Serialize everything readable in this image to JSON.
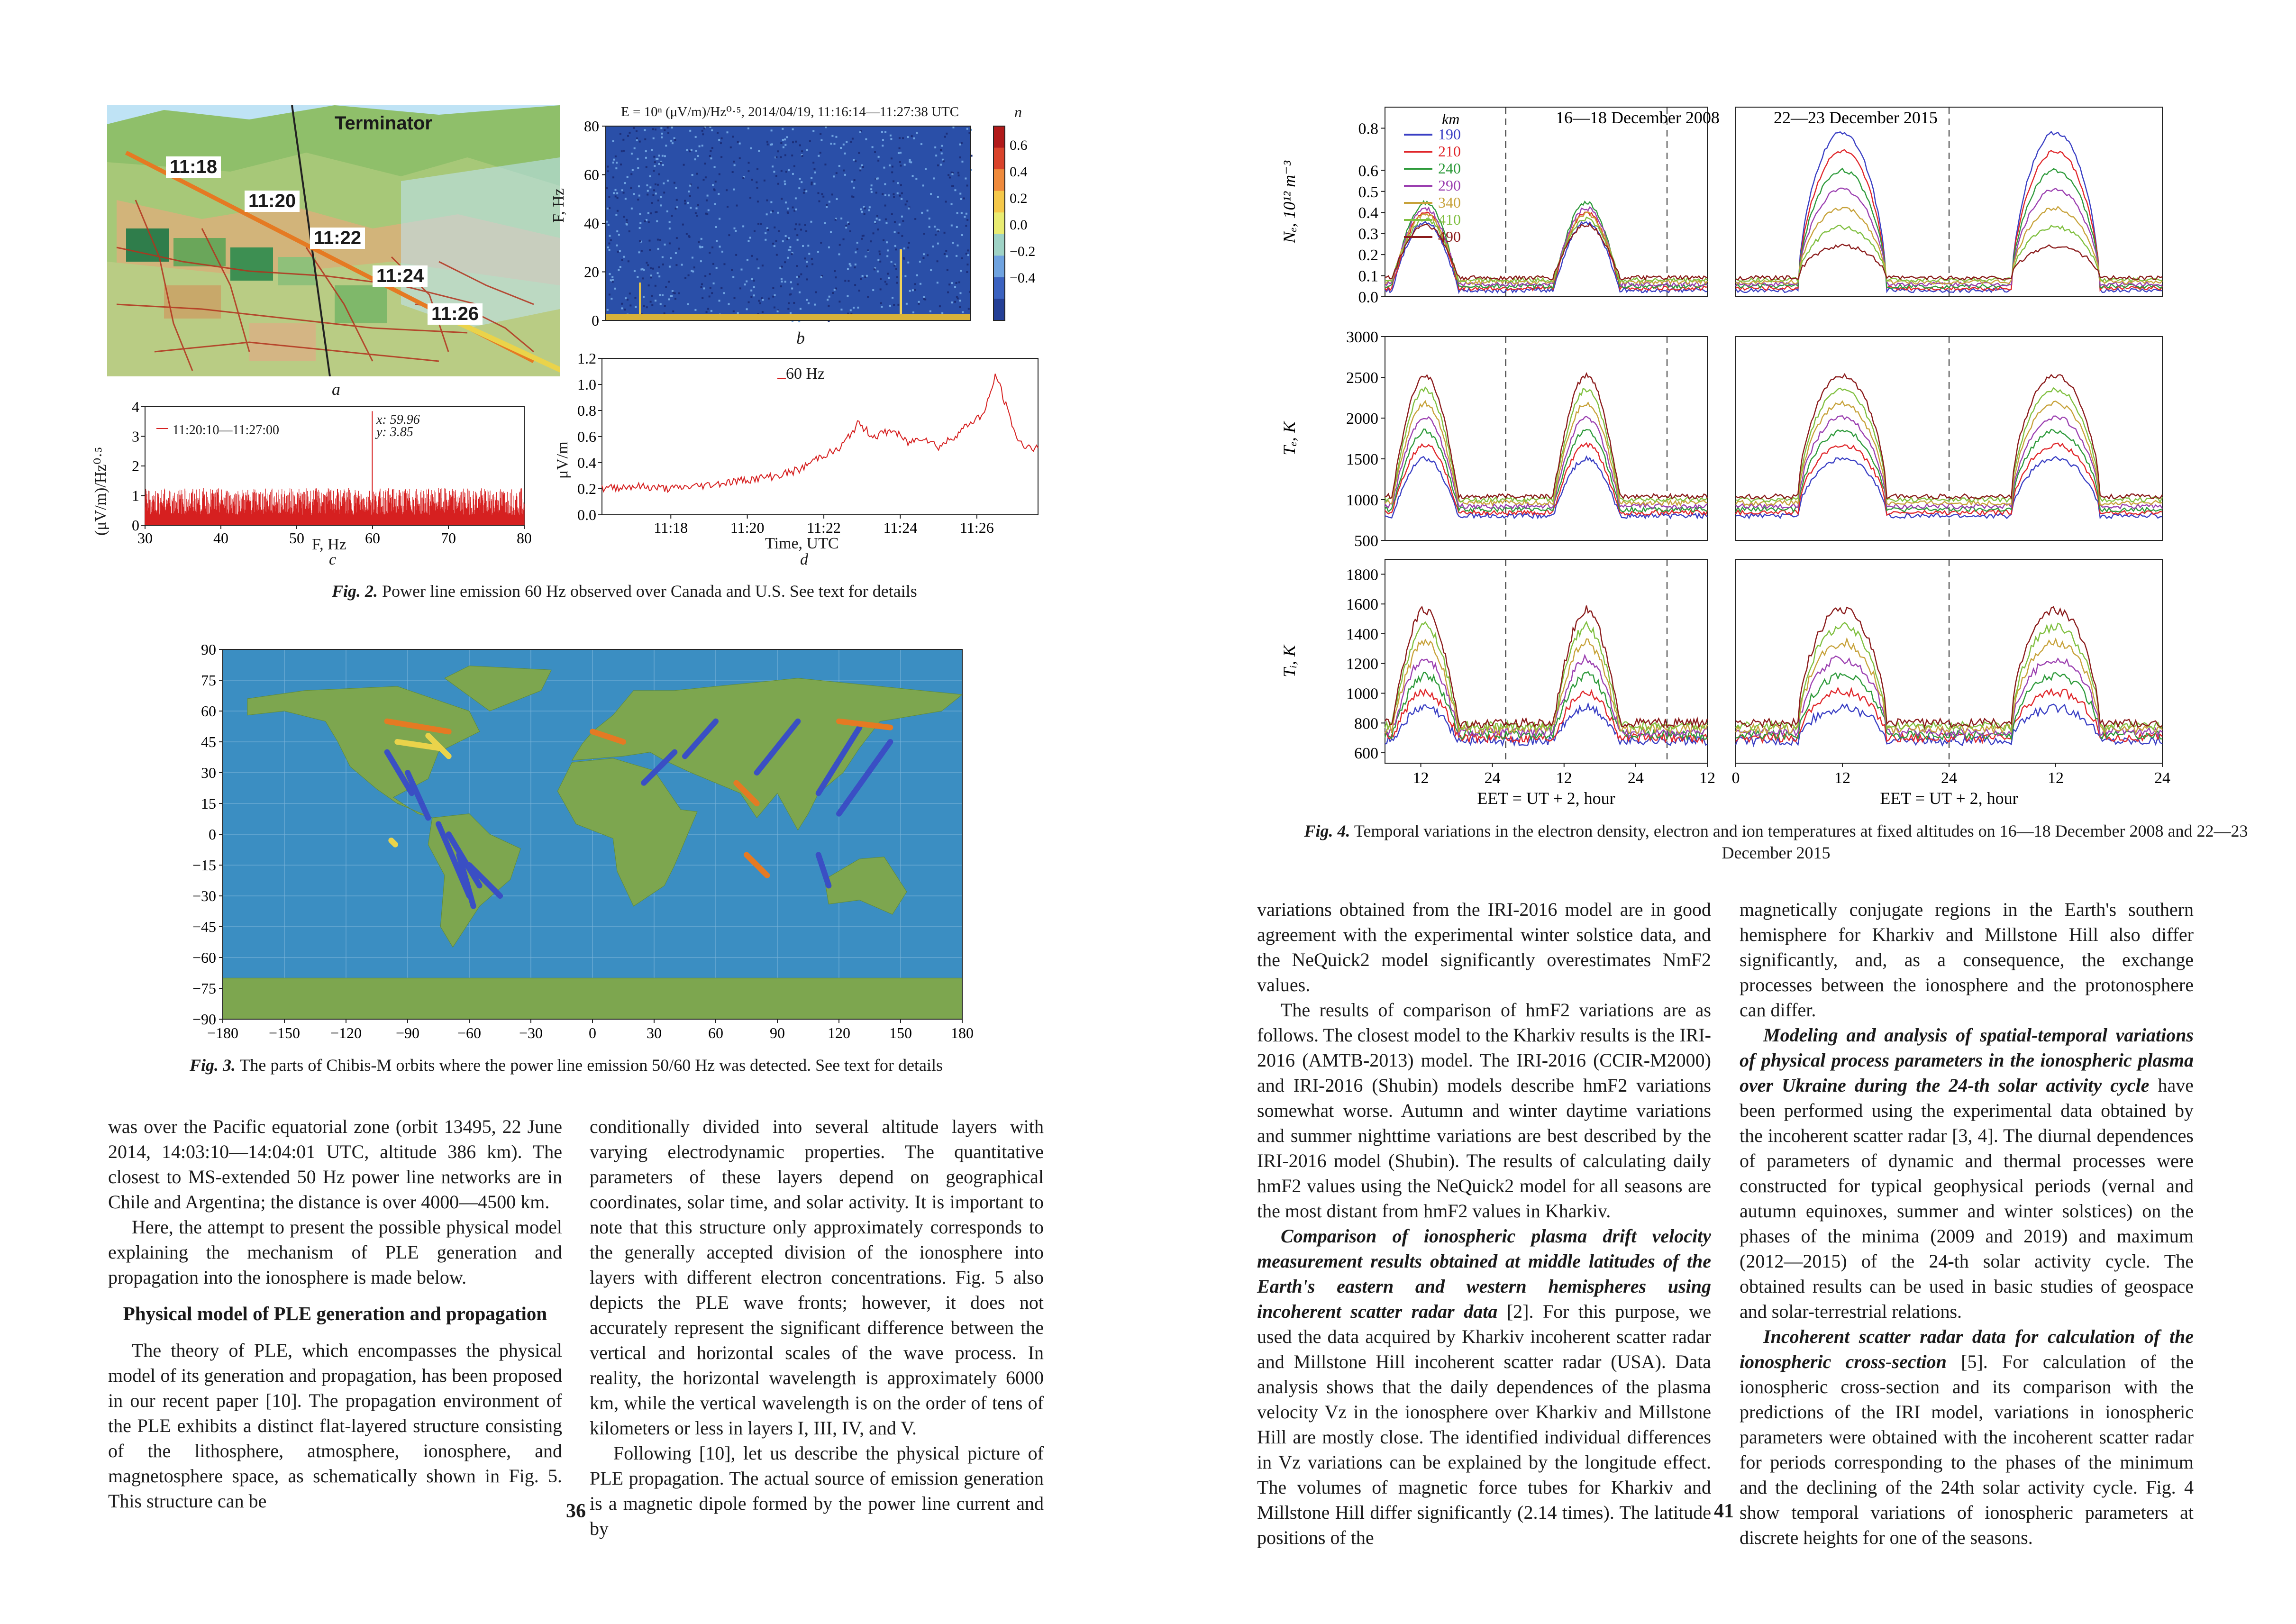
{
  "left_page": {
    "page_number": "36",
    "fig2": {
      "caption_label": "Fig. 2.",
      "caption_text": " Power line emission 60 Hz observed over Canada and U.S. See text for details",
      "panel_a": {
        "letter": "a",
        "terminator_label": "Terminator",
        "times": [
          "11:18",
          "11:20",
          "11:22",
          "11:24",
          "11:26"
        ]
      },
      "panel_b": {
        "letter": "b",
        "title": "E = 10ⁿ (μV/m)/Hz⁰·⁵, 2014/04/19, 11:16:14—11:27:38 UTC",
        "colorbar_label": "n",
        "colorbar_ticks": [
          "0.6",
          "0.4",
          "0.2",
          "0.0",
          "−0.2",
          "−0.4"
        ],
        "ylabel": "F, Hz",
        "yticks": [
          "80",
          "60",
          "40",
          "20",
          "0"
        ]
      },
      "panel_c": {
        "letter": "c",
        "xlabel": "F, Hz",
        "ylabel": "(μV/m)/Hz⁰·⁵",
        "legend": "11:20:10—11:27:00",
        "annotation_x": "x: 59.96",
        "annotation_y": "y: 3.85",
        "xticks": [
          "30",
          "40",
          "50",
          "60",
          "70",
          "80"
        ],
        "yticks": [
          "4",
          "3",
          "2",
          "1",
          "0"
        ],
        "color": "#d62020"
      },
      "panel_d": {
        "letter": "d",
        "xlabel": "Time, UTC",
        "ylabel": "μV/m",
        "legend": "60 Hz",
        "xticks": [
          "11:18",
          "11:20",
          "11:22",
          "11:24",
          "11:26"
        ],
        "yticks": [
          "1.2",
          "1.0",
          "0.8",
          "0.6",
          "0.4",
          "0.2",
          "0.0"
        ],
        "color": "#d62020"
      }
    },
    "fig3": {
      "caption_label": "Fig. 3.",
      "caption_text": " The parts of Chibis-M orbits where the power line emission 50/60 Hz was detected. See text for details",
      "yticks": [
        "90",
        "75",
        "60",
        "45",
        "30",
        "15",
        "0",
        "−15",
        "−30",
        "−45",
        "−60",
        "−75",
        "−90"
      ],
      "xticks": [
        "−180",
        "−150",
        "−120",
        "−90",
        "−60",
        "−30",
        "0",
        "30",
        "60",
        "90",
        "120",
        "150",
        "180"
      ]
    },
    "col1": {
      "p1": "was over the Pacific equatorial zone (orbit 13495, 22 June 2014, 14:03:10—14:04:01 UTC, altitude 386 km). The closest to MS-extended 50 Hz power line networks are in Chile and Argentina; the distance is over 4000—4500 km.",
      "p2": "Here, the attempt to present the possible physical model explaining the mechanism of PLE generation and propagation into the ionosphere is made below.",
      "heading": "Physical model of PLE generation and propagation",
      "p3": "The theory of PLE, which encompasses the physical model of its generation and propagation, has been proposed in our recent paper [10]. The propagation environment of the PLE exhibits a distinct flat-layered structure consisting of the lithosphere, atmosphere, ionosphere, and magnetosphere space, as schematically shown in Fig. 5. This structure can be"
    },
    "col2": {
      "p1": "conditionally divided into several altitude layers with varying electrodynamic properties. The quantitative parameters of these layers depend on geographical coordinates, solar time, and solar activity. It is important to note that this structure only approximately corresponds to the generally accepted division of the ionosphere into layers with different electron concentrations. Fig. 5 also depicts the PLE wave fronts; however, it does not accurately represent the significant difference between the vertical and horizontal scales of the wave process. In reality, the horizontal wavelength is approximately 6000 km, while the vertical wavelength is on the order of tens of kilometers or less in layers I, III, IV, and V.",
      "p2": "Following [10], let us describe the physical picture of PLE propagation. The actual source of emission generation is a magnetic dipole formed by the power line current and by"
    }
  },
  "right_page": {
    "page_number": "41",
    "fig4": {
      "caption_label": "Fig. 4.",
      "caption_text": " Temporal variations in the electron density, electron and ion temperatures at fixed altitudes on 16—18 December 2008 and 22—23 December 2015",
      "title_left": "16—18 December 2008",
      "title_right": "22—23 December 2015",
      "ylabel_ne": "Nₑ, 10¹² m⁻³",
      "ylabel_te": "Tₑ, K",
      "ylabel_ti": "Tᵢ, K",
      "xlabel": "EET = UT + 2, hour",
      "yticks_ne": [
        "0.8",
        "0.6",
        "0.5",
        "0.4",
        "0.3",
        "0.2",
        "0.1",
        "0.0"
      ],
      "yticks_te": [
        "3000",
        "2500",
        "2000",
        "1500",
        "1000",
        "500"
      ],
      "yticks_ti": [
        "1800",
        "1600",
        "1400",
        "1200",
        "1000",
        "800",
        "600"
      ],
      "xticks_left": [
        "12",
        "24",
        "12",
        "24",
        "12"
      ],
      "xticks_right": [
        "0",
        "12",
        "24",
        "12",
        "24"
      ],
      "legend_title": "km",
      "altitudes": [
        {
          "label": "190",
          "color": "#3a3fc4"
        },
        {
          "label": "210",
          "color": "#e0262a"
        },
        {
          "label": "240",
          "color": "#2d9a3a"
        },
        {
          "label": "290",
          "color": "#9b3fb0"
        },
        {
          "label": "340",
          "color": "#c7a23a"
        },
        {
          "label": "410",
          "color": "#7fbf3f"
        },
        {
          "label": "490",
          "color": "#8a1b1b"
        }
      ]
    },
    "col1": {
      "p1": "variations obtained from the IRI-2016 model are in good agreement with the experimental winter solstice data, and the NeQuick2 model significantly overestimates NmF2 values.",
      "p2": "The results of comparison of hmF2 variations are as follows. The closest model to the Kharkiv results is the IRI-2016 (AMTB-2013) model. The IRI-2016 (CCIR-M2000) and IRI-2016 (Shubin) models describe hmF2 variations somewhat worse. Autumn and winter daytime variations and summer nighttime variations are best described by the IRI-2016 model (Shubin). The results of calculating daily hmF2 values using the NeQuick2 model for all seasons are the most distant from hmF2 values in Kharkiv.",
      "p3_head": "Comparison of ionospheric plasma drift velocity measurement results obtained at middle latitudes of the Earth's eastern and western hemispheres using incoherent scatter radar data",
      "p3_text": " [2]. For this purpose, we used the data acquired by Kharkiv incoherent scatter radar and Millstone Hill incoherent scatter radar (USA). Data analysis shows that the daily dependences of the plasma velocity Vz in the ionosphere over Kharkiv and Millstone Hill are mostly close. The identified individual differences in Vz variations can be explained by the longitude effect. The volumes of magnetic force tubes for Kharkiv and Millstone Hill differ significantly (2.14 times). The latitude positions of the"
    },
    "col2": {
      "p1": "magnetically conjugate regions in the Earth's southern hemisphere for Kharkiv and Millstone Hill also differ significantly, and, as a consequence, the exchange processes between the ionosphere and the protonosphere can differ.",
      "p2_head": "Modeling and analysis of spatial-temporal variations of physical process parameters in the ionospheric plasma over Ukraine during the 24-th solar activity cycle",
      "p2_text": " have been performed using the experimental data obtained by the incoherent scatter radar [3, 4]. The diurnal dependences of parameters of dynamic and thermal processes were constructed for typical geophysical periods (vernal and autumn equinoxes, summer and winter solstices) on the phases of the minima (2009 and 2019) and maximum (2012—2015) of the 24-th solar activity cycle. The obtained results can be used in basic studies of geospace and solar-terrestrial relations.",
      "p3_head": "Incoherent scatter radar data for calculation of the ionospheric cross-section",
      "p3_text": " [5]. For calculation of the ionospheric cross-section and its comparison with the predictions of the IRI model, variations in ionospheric parameters were obtained with the incoherent scatter radar for periods corresponding to the phases of the minimum and the declining of the 24th solar activity cycle. Fig. 4 show temporal variations of ionospheric parameters at discrete heights for one of the seasons."
    }
  }
}
